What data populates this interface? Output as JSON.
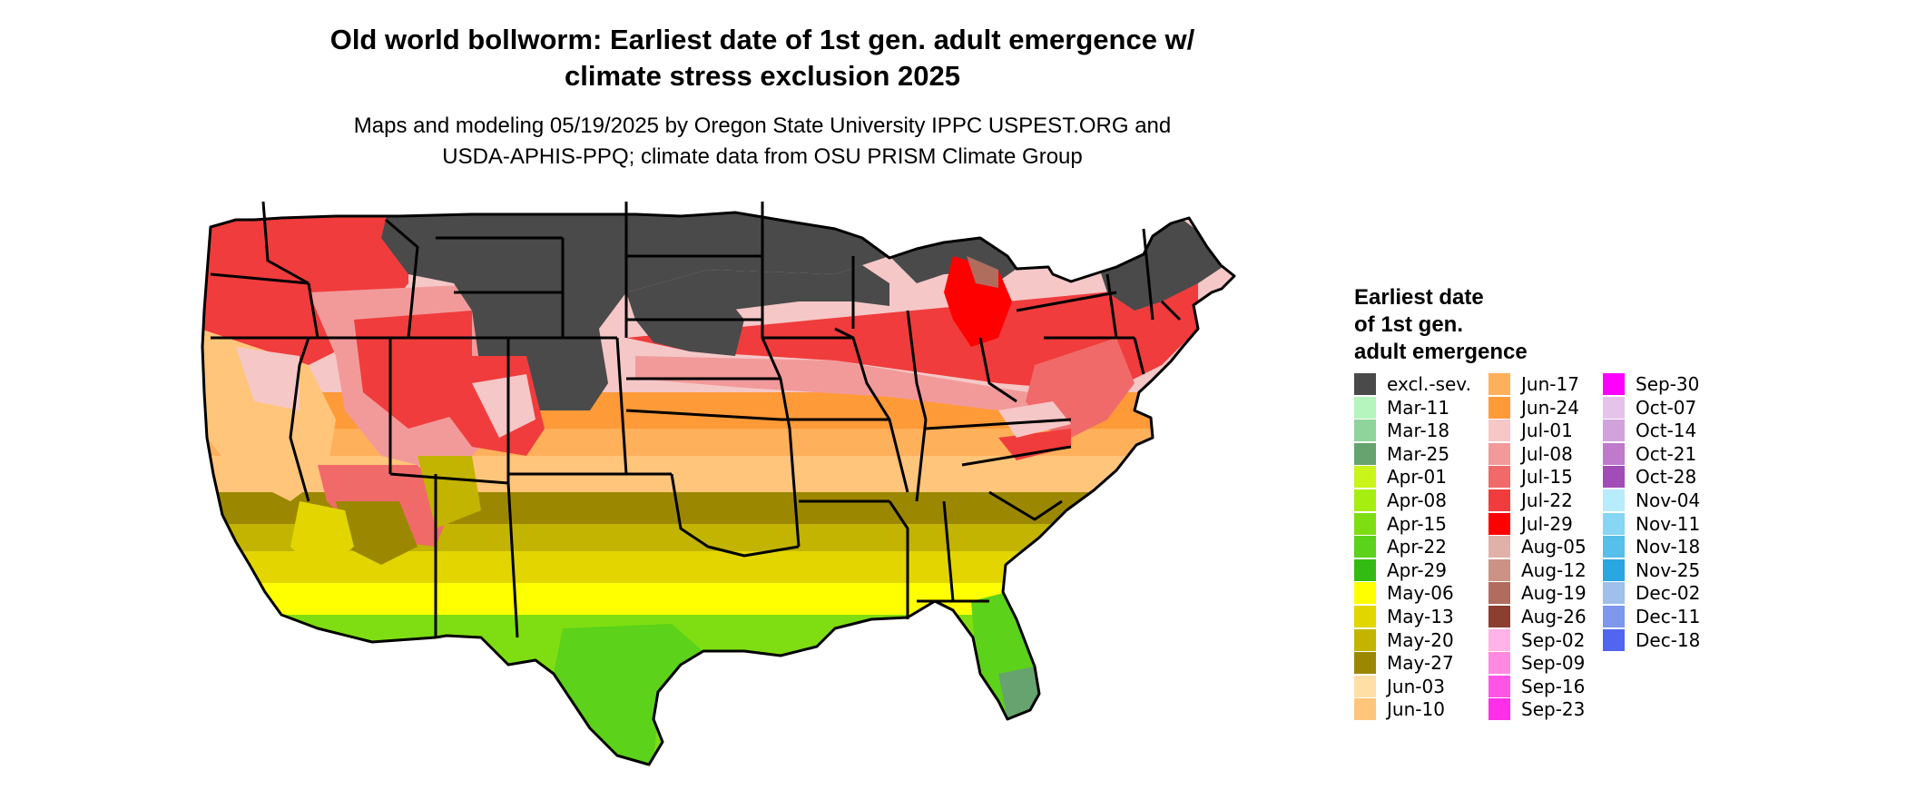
{
  "title_lines": [
    "Old world bollworm: Earliest date of 1st gen. adult emergence w/",
    "climate stress exclusion 2025"
  ],
  "subtitle_lines": [
    "Maps and modeling 05/19/2025 by Oregon State University IPPC USPEST.ORG and",
    "USDA-APHIS-PPQ; climate data from OSU PRISM Climate Group"
  ],
  "legend": {
    "title_lines": [
      "Earliest date",
      "of 1st gen.",
      "adult emergence"
    ],
    "columns": [
      [
        {
          "label": "excl.-sev.",
          "color": "#4a4a4a"
        },
        {
          "label": "Mar-11",
          "color": "#b6f5bd"
        },
        {
          "label": "Mar-18",
          "color": "#8fd49a"
        },
        {
          "label": "Mar-25",
          "color": "#66a36f"
        },
        {
          "label": "Apr-01",
          "color": "#c9f51a"
        },
        {
          "label": "Apr-08",
          "color": "#a6ee12"
        },
        {
          "label": "Apr-15",
          "color": "#7fde12"
        },
        {
          "label": "Apr-22",
          "color": "#5cd21a"
        },
        {
          "label": "Apr-29",
          "color": "#33bb14"
        },
        {
          "label": "May-06",
          "color": "#ffff00"
        },
        {
          "label": "May-13",
          "color": "#e3d600"
        },
        {
          "label": "May-20",
          "color": "#c2b400"
        },
        {
          "label": "May-27",
          "color": "#9c8800"
        },
        {
          "label": "Jun-03",
          "color": "#ffdfa6"
        },
        {
          "label": "Jun-10",
          "color": "#ffc57a"
        }
      ],
      [
        {
          "label": "Jun-17",
          "color": "#ffb05a"
        },
        {
          "label": "Jun-24",
          "color": "#ff9a38"
        },
        {
          "label": "Jul-01",
          "color": "#f5c7c7"
        },
        {
          "label": "Jul-08",
          "color": "#f29a9a"
        },
        {
          "label": "Jul-15",
          "color": "#f06a6a"
        },
        {
          "label": "Jul-22",
          "color": "#f03c3c"
        },
        {
          "label": "Jul-29",
          "color": "#ff0000"
        },
        {
          "label": "Aug-05",
          "color": "#e0b1a8"
        },
        {
          "label": "Aug-12",
          "color": "#cc9283"
        },
        {
          "label": "Aug-19",
          "color": "#b06d5e"
        },
        {
          "label": "Aug-26",
          "color": "#8c3f30"
        },
        {
          "label": "Sep-02",
          "color": "#ffb3e6"
        },
        {
          "label": "Sep-09",
          "color": "#ff88e0"
        },
        {
          "label": "Sep-16",
          "color": "#ff55e6"
        },
        {
          "label": "Sep-23",
          "color": "#ff2ee8"
        }
      ],
      [
        {
          "label": "Sep-30",
          "color": "#ff00ff"
        },
        {
          "label": "Oct-07",
          "color": "#e6c3ea"
        },
        {
          "label": "Oct-14",
          "color": "#d2a2dd"
        },
        {
          "label": "Oct-21",
          "color": "#bf7acc"
        },
        {
          "label": "Oct-28",
          "color": "#a24cb8"
        },
        {
          "label": "Nov-04",
          "color": "#b6ecfc"
        },
        {
          "label": "Nov-11",
          "color": "#86d6f4"
        },
        {
          "label": "Nov-18",
          "color": "#56bfea"
        },
        {
          "label": "Nov-25",
          "color": "#2aa6e0"
        },
        {
          "label": "Dec-02",
          "color": "#9ec0ea"
        },
        {
          "label": "Dec-11",
          "color": "#7e98ee"
        },
        {
          "label": "Dec-18",
          "color": "#5066f0"
        }
      ]
    ]
  },
  "map": {
    "colors": {
      "excluded": "#4a4a4a",
      "border": "#000000",
      "background": "#ffffff"
    }
  }
}
